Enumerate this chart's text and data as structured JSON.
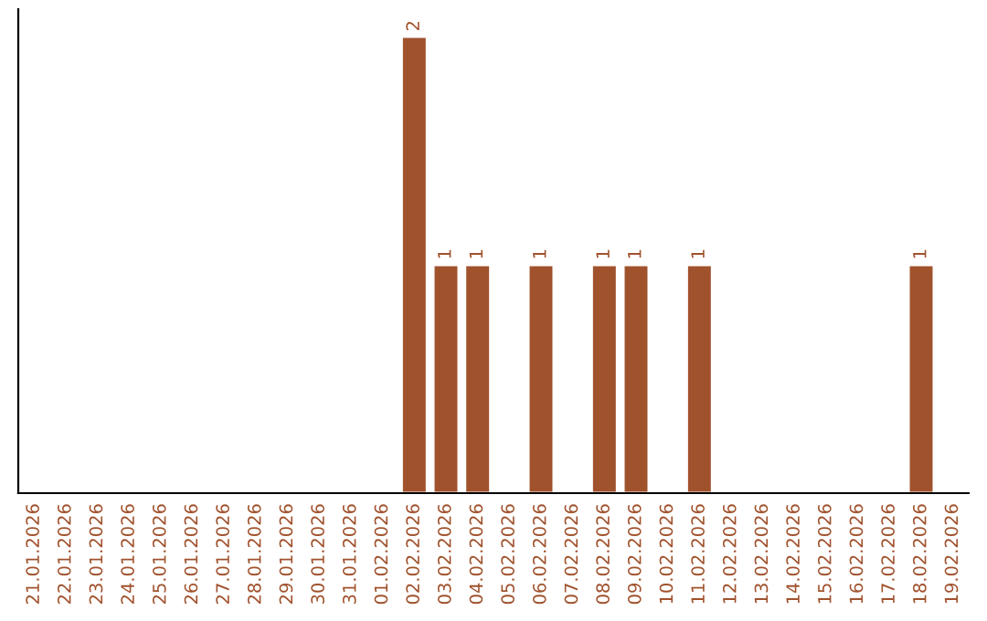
{
  "chart_data": {
    "type": "bar",
    "categories": [
      "21.01.2026",
      "22.01.2026",
      "23.01.2026",
      "24.01.2026",
      "25.01.2026",
      "26.01.2026",
      "27.01.2026",
      "28.01.2026",
      "29.01.2026",
      "30.01.2026",
      "31.01.2026",
      "01.02.2026",
      "02.02.2026",
      "03.02.2026",
      "04.02.2026",
      "05.02.2026",
      "06.02.2026",
      "07.02.2026",
      "08.02.2026",
      "09.02.2026",
      "10.02.2026",
      "11.02.2026",
      "12.02.2026",
      "13.02.2026",
      "14.02.2026",
      "15.02.2026",
      "16.02.2026",
      "17.02.2026",
      "18.02.2026",
      "19.02.2026"
    ],
    "values": [
      null,
      null,
      null,
      null,
      null,
      null,
      null,
      null,
      null,
      null,
      null,
      null,
      2,
      1,
      1,
      null,
      1,
      null,
      1,
      1,
      null,
      1,
      null,
      null,
      null,
      null,
      null,
      null,
      1,
      null
    ],
    "data_labels": true,
    "color": "#a0522d",
    "tick_labels": "x",
    "grid": false,
    "legend": false
  }
}
